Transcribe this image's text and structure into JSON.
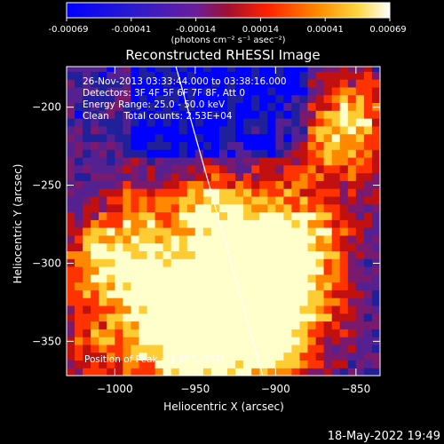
{
  "colorbar": {
    "ticks": [
      "-0.00069",
      "-0.00041",
      "-0.00014",
      "0.00014",
      "0.00041",
      "0.00069"
    ],
    "unit_label": "(photons cm⁻² s⁻¹ asec⁻²)"
  },
  "chart_data": {
    "type": "heatmap",
    "title": "Reconstructed RHESSI Image",
    "xlabel": "Heliocentric X (arcsec)",
    "ylabel": "Heliocentric Y (arcsec)",
    "xlim": [
      -1030,
      -835
    ],
    "ylim": [
      -372,
      -174
    ],
    "x_ticks": [
      -1000,
      -950,
      -900,
      -850
    ],
    "x_tick_labels": [
      "−1000",
      "−950",
      "−900",
      "−850"
    ],
    "y_ticks": [
      -200,
      -250,
      -300,
      -350
    ],
    "y_tick_labels": [
      "−200",
      "−250",
      "−300",
      "−350"
    ],
    "colormap": [
      "#0000ff",
      "#20209a",
      "#55208f",
      "#7a1a6e",
      "#c01010",
      "#ff3300",
      "#ff8800",
      "#ffcc33",
      "#ffffcc"
    ],
    "value_range": [
      -0.00069,
      0.00069
    ],
    "peak": {
      "x": -923,
      "y": -337
    },
    "limb_line": {
      "from": [
        -962,
        -174
      ],
      "to": [
        -908,
        -372
      ]
    }
  },
  "annotations": {
    "time_range": "26-Nov-2013 03:33:44.000 to 03:38:16.000",
    "detectors": "Detectors: 3F 4F 5F 6F 7F 8F, Att 0",
    "energy": "Energy Range: 25.0 - 50.0 keV",
    "clean": "Clean     Total counts: 2.53E+04",
    "peak": "Position of Peak = [-923,-337]"
  },
  "footer_timestamp": "18-May-2022 19:49"
}
